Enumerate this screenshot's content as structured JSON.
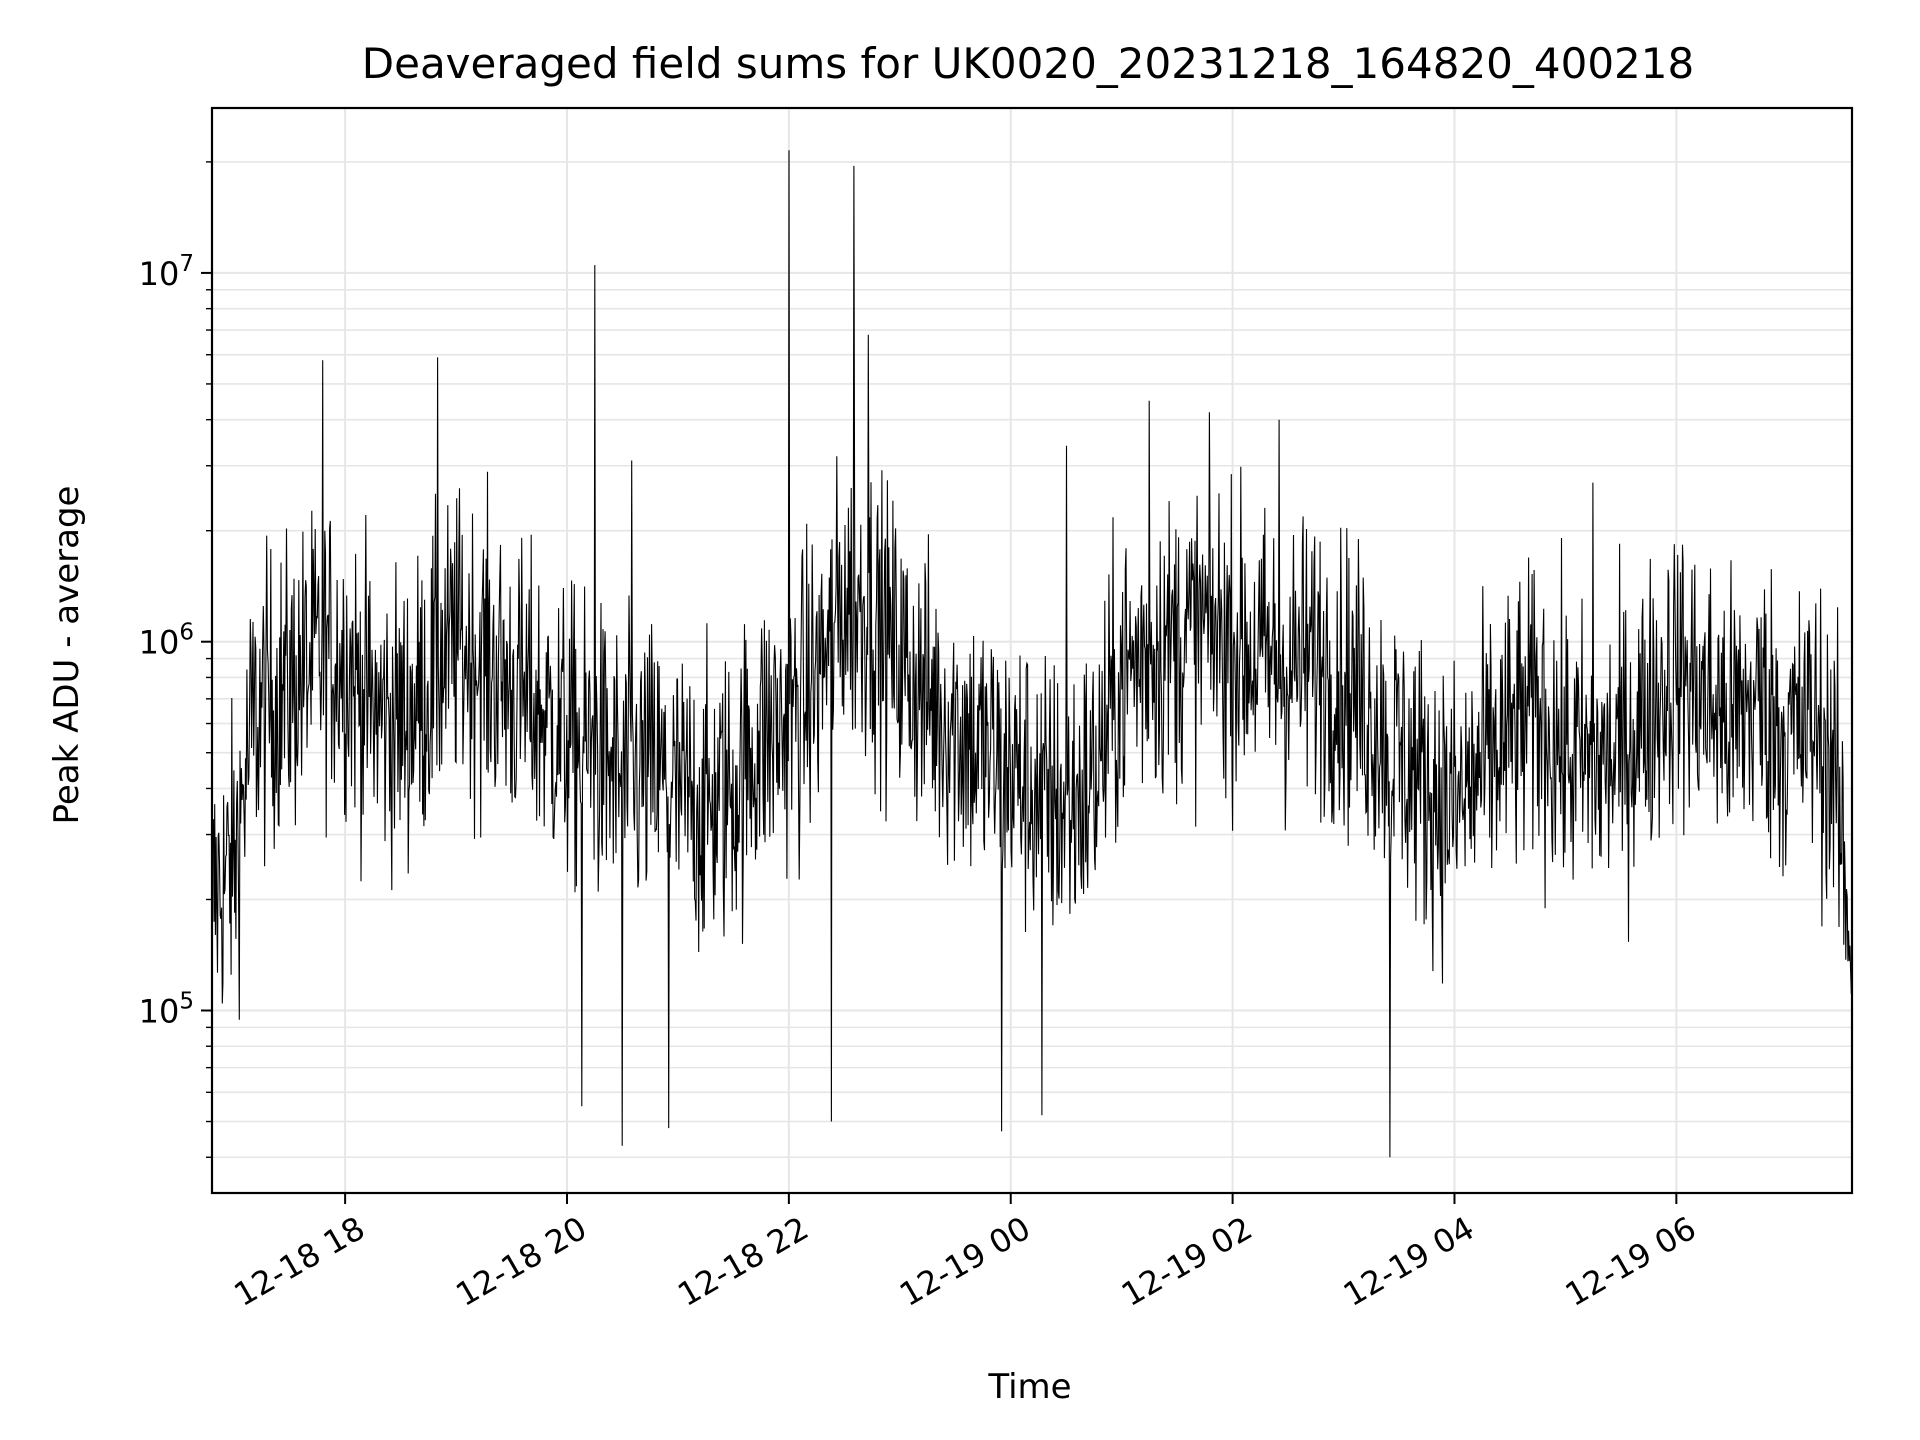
{
  "chart_data": {
    "type": "line",
    "title": "Deaveraged field sums for UK0020_20231218_164820_400218",
    "xlabel": "Time",
    "ylabel": "Peak ADU - average",
    "yscale": "log",
    "xlim": [
      "2023-12-18 16:48",
      "2023-12-19 07:35"
    ],
    "ylim": [
      32000,
      28000000
    ],
    "grid": true,
    "line_color": "#000000",
    "grid_color": "#e6e6e6",
    "x_ticks": [
      {
        "t": "2023-12-18 18:00",
        "label": "12-18 18"
      },
      {
        "t": "2023-12-18 20:00",
        "label": "12-18 20"
      },
      {
        "t": "2023-12-18 22:00",
        "label": "12-18 22"
      },
      {
        "t": "2023-12-19 00:00",
        "label": "12-19 00"
      },
      {
        "t": "2023-12-19 02:00",
        "label": "12-19 02"
      },
      {
        "t": "2023-12-19 04:00",
        "label": "12-19 04"
      },
      {
        "t": "2023-12-19 06:00",
        "label": "12-19 06"
      }
    ],
    "y_ticks": [
      {
        "value": 100000,
        "base": "10",
        "exp": "5"
      },
      {
        "value": 1000000,
        "base": "10",
        "exp": "6"
      },
      {
        "value": 10000000,
        "base": "10",
        "exp": "7"
      }
    ],
    "series": [
      {
        "x": [
          "2023-12-18 16:48",
          "2023-12-18 17:00",
          "2023-12-18 17:10",
          "2023-12-18 17:20",
          "2023-12-18 17:30",
          "2023-12-18 17:40",
          "2023-12-18 17:50",
          "2023-12-18 18:00",
          "2023-12-18 18:15",
          "2023-12-18 18:30",
          "2023-12-18 18:45",
          "2023-12-18 19:00",
          "2023-12-18 19:15",
          "2023-12-18 19:30",
          "2023-12-18 19:45",
          "2023-12-18 20:00",
          "2023-12-18 20:15",
          "2023-12-18 20:30",
          "2023-12-18 20:45",
          "2023-12-18 21:00",
          "2023-12-18 21:15",
          "2023-12-18 21:30",
          "2023-12-18 21:45",
          "2023-12-18 22:00",
          "2023-12-18 22:15",
          "2023-12-18 22:30",
          "2023-12-18 22:45",
          "2023-12-18 23:00",
          "2023-12-18 23:15",
          "2023-12-18 23:30",
          "2023-12-18 23:45",
          "2023-12-19 00:00",
          "2023-12-19 00:15",
          "2023-12-19 00:30",
          "2023-12-19 00:45",
          "2023-12-19 01:00",
          "2023-12-19 01:15",
          "2023-12-19 01:30",
          "2023-12-19 01:45",
          "2023-12-19 02:00",
          "2023-12-19 02:15",
          "2023-12-19 02:30",
          "2023-12-19 02:45",
          "2023-12-19 03:00",
          "2023-12-19 03:15",
          "2023-12-19 03:30",
          "2023-12-19 03:45",
          "2023-12-19 04:00",
          "2023-12-19 04:15",
          "2023-12-19 04:30",
          "2023-12-19 04:45",
          "2023-12-19 05:00",
          "2023-12-19 05:15",
          "2023-12-19 05:30",
          "2023-12-19 05:45",
          "2023-12-19 06:00",
          "2023-12-19 06:15",
          "2023-12-19 06:30",
          "2023-12-19 06:45",
          "2023-12-19 07:00",
          "2023-12-19 07:15",
          "2023-12-19 07:25",
          "2023-12-19 07:35"
        ],
        "y": [
          200000,
          250000,
          600000,
          700000,
          750000,
          850000,
          950000,
          900000,
          650000,
          600000,
          750000,
          1000000,
          900000,
          750000,
          650000,
          550000,
          500000,
          420000,
          450000,
          380000,
          350000,
          400000,
          550000,
          600000,
          800000,
          1300000,
          1200000,
          900000,
          700000,
          600000,
          500000,
          450000,
          380000,
          350000,
          420000,
          800000,
          950000,
          1000000,
          1100000,
          1000000,
          900000,
          850000,
          900000,
          800000,
          650000,
          500000,
          400000,
          350000,
          450000,
          550000,
          650000,
          500000,
          450000,
          500000,
          650000,
          850000,
          700000,
          600000,
          700000,
          550000,
          600000,
          450000,
          150000
        ],
        "spikes": [
          {
            "t": "2023-12-18 17:48",
            "y": 5800000
          },
          {
            "t": "2023-12-18 18:50",
            "y": 5900000
          },
          {
            "t": "2023-12-18 20:15",
            "y": 10500000
          },
          {
            "t": "2023-12-18 20:35",
            "y": 3100000
          },
          {
            "t": "2023-12-18 22:00",
            "y": 21500000
          },
          {
            "t": "2023-12-18 22:35",
            "y": 19500000
          },
          {
            "t": "2023-12-18 22:43",
            "y": 6800000
          },
          {
            "t": "2023-12-19 00:30",
            "y": 3400000
          },
          {
            "t": "2023-12-19 01:15",
            "y": 4500000
          },
          {
            "t": "2023-12-19 02:25",
            "y": 4000000
          },
          {
            "t": "2023-12-19 05:15",
            "y": 2700000
          },
          {
            "t": "2023-12-18 20:08",
            "y": 55000
          },
          {
            "t": "2023-12-18 20:30",
            "y": 43000
          },
          {
            "t": "2023-12-18 20:55",
            "y": 48000
          },
          {
            "t": "2023-12-18 22:23",
            "y": 50000
          },
          {
            "t": "2023-12-18 23:55",
            "y": 47000
          },
          {
            "t": "2023-12-19 00:17",
            "y": 52000
          },
          {
            "t": "2023-12-19 03:25",
            "y": 40000
          }
        ]
      }
    ]
  }
}
